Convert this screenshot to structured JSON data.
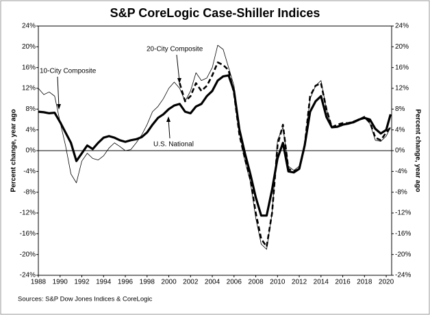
{
  "chart_data": {
    "type": "line",
    "title": "S&P CoreLogic Case-Shiller Indices",
    "y_label": "Percent change, year ago",
    "y2_label": "Percent change, year ago",
    "source": "Sources: S&P Dow Jones Indices & CoreLogic",
    "x": [
      1988,
      1988.5,
      1989,
      1989.5,
      1990,
      1990.5,
      1991,
      1991.5,
      1992,
      1992.5,
      1993,
      1993.5,
      1994,
      1994.5,
      1995,
      1995.5,
      1996,
      1996.5,
      1997,
      1997.5,
      1998,
      1998.5,
      1999,
      1999.5,
      2000,
      2000.5,
      2001,
      2001.5,
      2002,
      2002.5,
      2003,
      2003.5,
      2004,
      2004.5,
      2005,
      2005.5,
      2006,
      2006.5,
      2007,
      2007.5,
      2008,
      2008.5,
      2009,
      2009.5,
      2010,
      2010.5,
      2011,
      2011.5,
      2012,
      2012.5,
      2013,
      2013.5,
      2014,
      2014.5,
      2015,
      2015.5,
      2016,
      2016.5,
      2017,
      2017.5,
      2018,
      2018.5,
      2019,
      2019.5,
      2020,
      2020.4
    ],
    "series": [
      {
        "name": "10-City Composite",
        "color": "#000000",
        "width": 0.8,
        "dash": "none",
        "values": [
          12,
          10.8,
          11.3,
          10.5,
          5.5,
          1.0,
          -4.5,
          -6.2,
          -2.0,
          -0.5,
          -1.5,
          -1.8,
          -1.0,
          0.5,
          1.5,
          0.8,
          0.0,
          0.2,
          1.5,
          3.0,
          5.0,
          7.5,
          8.5,
          10.0,
          12.0,
          13.2,
          12.0,
          9.5,
          11.5,
          15.0,
          13.5,
          14.0,
          16.0,
          20.3,
          19.5,
          16.0,
          12.5,
          3.5,
          -2.0,
          -6.0,
          -13.0,
          -18.0,
          -19.0,
          -12.0,
          2.0,
          4.5,
          -3.0,
          -3.8,
          -3.0,
          1.5,
          10.0,
          12.5,
          13.5,
          8.0,
          4.5,
          4.5,
          5.0,
          5.2,
          5.3,
          5.8,
          6.3,
          5.2,
          2.0,
          1.8,
          2.8,
          4.5
        ]
      },
      {
        "name": "20-City Composite",
        "color": "#000000",
        "width": 2.6,
        "dash": "7 4",
        "values": [
          null,
          null,
          null,
          null,
          null,
          null,
          null,
          null,
          null,
          null,
          null,
          null,
          null,
          null,
          null,
          null,
          null,
          null,
          null,
          null,
          null,
          null,
          null,
          null,
          null,
          null,
          13.0,
          9.5,
          10.5,
          13.0,
          11.5,
          12.5,
          14.5,
          17.0,
          16.5,
          15.5,
          11.0,
          3.0,
          -1.5,
          -5.5,
          -12.0,
          -17.0,
          -18.5,
          -12.0,
          1.0,
          5.0,
          -3.5,
          -4.0,
          -3.5,
          1.0,
          10.5,
          12.5,
          13.0,
          8.0,
          4.5,
          5.0,
          5.3,
          5.3,
          5.6,
          6.0,
          6.5,
          5.5,
          2.5,
          2.0,
          3.5,
          4.5
        ]
      },
      {
        "name": "U.S. National",
        "color": "#000000",
        "width": 3.2,
        "dash": "none",
        "values": [
          7.5,
          7.4,
          7.2,
          7.3,
          5.5,
          3.5,
          1.5,
          -2.0,
          -0.5,
          1.0,
          0.3,
          1.5,
          2.5,
          2.8,
          2.5,
          2.0,
          1.7,
          2.0,
          2.2,
          2.6,
          3.5,
          5.0,
          6.3,
          7.0,
          8.0,
          8.7,
          9.0,
          7.5,
          7.2,
          8.5,
          9.0,
          10.5,
          11.5,
          13.5,
          14.3,
          14.5,
          11.5,
          4.0,
          -0.5,
          -4.5,
          -9.0,
          -12.5,
          -12.5,
          -7.5,
          -1.5,
          1.5,
          -4.0,
          -4.2,
          -3.5,
          1.0,
          7.5,
          9.5,
          10.5,
          6.5,
          4.5,
          4.6,
          5.0,
          5.2,
          5.5,
          6.0,
          6.3,
          6.0,
          4.2,
          3.3,
          4.0,
          7.0
        ]
      }
    ],
    "xlim": [
      1988,
      2020.5
    ],
    "xticks": [
      1988,
      1990,
      1992,
      1994,
      1996,
      1998,
      2000,
      2002,
      2004,
      2006,
      2008,
      2010,
      2012,
      2014,
      2016,
      2018,
      2020
    ],
    "ylim": [
      -24,
      24
    ],
    "yticks": [
      {
        "value": -24,
        "label": "-24%"
      },
      {
        "value": -20,
        "label": "-20%"
      },
      {
        "value": -16,
        "label": "-16%"
      },
      {
        "value": -12,
        "label": "-12%"
      },
      {
        "value": -8,
        "label": "-8%"
      },
      {
        "value": -4,
        "label": "-4%"
      },
      {
        "value": 0,
        "label": "0%"
      },
      {
        "value": 4,
        "label": "4%"
      },
      {
        "value": 8,
        "label": "8%"
      },
      {
        "value": 12,
        "label": "12%"
      },
      {
        "value": 16,
        "label": "16%"
      },
      {
        "value": 20,
        "label": "20%"
      },
      {
        "value": 24,
        "label": "24%"
      }
    ],
    "y2lim": [
      -24,
      24
    ],
    "y2ticks": [
      {
        "value": -24,
        "label": "-24%"
      },
      {
        "value": -20,
        "label": "-20%"
      },
      {
        "value": -16,
        "label": "-16%"
      },
      {
        "value": -12,
        "label": "-12%"
      },
      {
        "value": -8,
        "label": "-8%"
      },
      {
        "value": -4,
        "label": "-4%"
      },
      {
        "value": 0,
        "label": "0%"
      },
      {
        "value": 4,
        "label": "4%"
      },
      {
        "value": 8,
        "label": "8%"
      },
      {
        "value": 12,
        "label": "12%"
      },
      {
        "value": 16,
        "label": "16%"
      },
      {
        "value": 20,
        "label": "20%"
      },
      {
        "value": 24,
        "label": "24%"
      }
    ]
  }
}
